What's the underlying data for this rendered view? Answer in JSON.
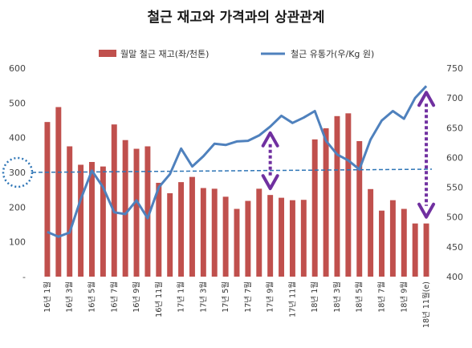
{
  "chart_data": {
    "type": "bar",
    "title": "철근 재고와 가격과의 상관관계",
    "categories": [
      "16년 1월",
      "16년 2월",
      "16년 3월",
      "16년 4월",
      "16년 5월",
      "16년 6월",
      "16년 7월",
      "16년 8월",
      "16년 9월",
      "16년 10월",
      "16년 11월",
      "16년 12월",
      "17년 1월",
      "17년 2월",
      "17년 3월",
      "17년 4월",
      "17년 5월",
      "17년 6월",
      "17년 7월",
      "17년 8월",
      "17년 9월",
      "17년 10월",
      "17년 11월",
      "17년 12월",
      "18년 1월",
      "18년 2월",
      "18년 3월",
      "18년 4월",
      "18년 5월",
      "18년 6월",
      "18년 7월",
      "18년 8월",
      "18년 9월",
      "18년 10월",
      "18년 11월(e)"
    ],
    "xtick_labels": [
      "16년 1월",
      "16년 3월",
      "16년 5월",
      "16년 7월",
      "16년 9월",
      "16년 11월",
      "17년 1월",
      "17년 3월",
      "17년 5월",
      "17년 7월",
      "17년 9월",
      "17년 11월",
      "18년 1월",
      "18년 3월",
      "18년 5월",
      "18년 7월",
      "18년 9월",
      "18년 11월(e)"
    ],
    "series": [
      {
        "name": "월말 철근 재고(좌/천톤)",
        "type": "bar",
        "axis": "left",
        "color": "#c0504d",
        "values": [
          445,
          488,
          375,
          322,
          330,
          317,
          438,
          393,
          368,
          375,
          270,
          240,
          272,
          287,
          255,
          253,
          230,
          195,
          218,
          253,
          235,
          227,
          220,
          221,
          395,
          427,
          462,
          470,
          390,
          252,
          190,
          220,
          195,
          153,
          153
        ]
      },
      {
        "name": "철근 유통가(우/Kg 원)",
        "type": "line",
        "axis": "right",
        "color": "#4f81bd",
        "values": [
          475,
          467,
          474,
          530,
          578,
          550,
          508,
          505,
          528,
          498,
          550,
          572,
          615,
          585,
          602,
          623,
          621,
          627,
          628,
          637,
          652,
          670,
          658,
          667,
          678,
          628,
          605,
          595,
          580,
          630,
          662,
          678,
          665,
          700,
          720
        ]
      }
    ],
    "ylim_left": [
      0,
      600
    ],
    "yticks_left": [
      "-",
      "100",
      "200",
      "300",
      "400",
      "500",
      "600"
    ],
    "ylim_right": [
      400,
      750
    ],
    "yticks_right": [
      "400",
      "450",
      "500",
      "550",
      "600",
      "650",
      "700",
      "750"
    ],
    "reference_line": {
      "value": 300,
      "axis": "left",
      "label": "300",
      "color": "#2e75b6"
    },
    "annotations": [
      {
        "type": "double-arrow",
        "x_category": "17년 9월",
        "color": "#7030a0"
      },
      {
        "type": "double-arrow",
        "x_category": "18년 11월(e)",
        "color": "#7030a0"
      }
    ],
    "legend_position": "top",
    "grid": false
  }
}
